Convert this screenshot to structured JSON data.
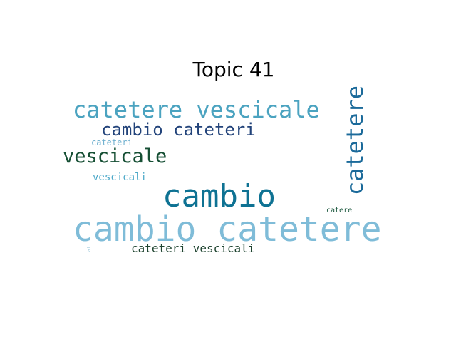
{
  "title": "Topic 41",
  "words": [
    {
      "text": "cambio catetere",
      "color": "#7fbcd8"
    },
    {
      "text": "cambio",
      "color": "#0e7293"
    },
    {
      "text": "catetere vescicale",
      "color": "#4ba3c0"
    },
    {
      "text": "cambio cateteri",
      "color": "#22437a"
    },
    {
      "text": "vescicale",
      "color": "#164f34"
    },
    {
      "text": "catetere",
      "color": "#1b6a9a"
    },
    {
      "text": "cateteri vescicali",
      "color": "#1f4430"
    },
    {
      "text": "vescicali",
      "color": "#4ba8c8"
    },
    {
      "text": "cateteri",
      "color": "#6fb0cf"
    },
    {
      "text": "catere",
      "color": "#1e5a40"
    },
    {
      "text": "cat",
      "color": "#a8cfe0"
    }
  ]
}
